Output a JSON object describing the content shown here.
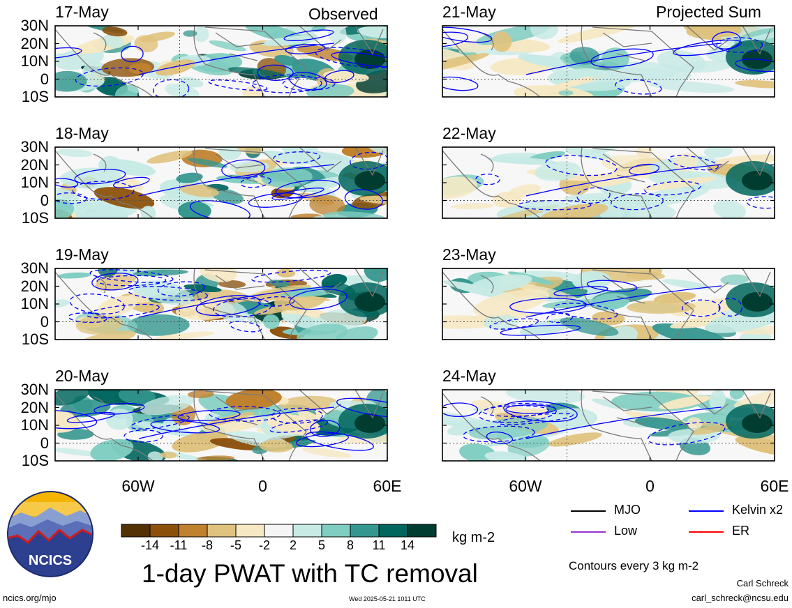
{
  "figure": {
    "title": "1-day PWAT with TC removal",
    "units": "kg m-2",
    "contour_note": "Contours every 3 kg m-2",
    "timestamp": "Wed 2025-05-21 1011 UTC",
    "url": "ncics.org/mjo",
    "author": "Carl Schreck",
    "email": "carl_schreck@ncsu.edu",
    "logo_text": "NCICS"
  },
  "columns": {
    "left_tag": "Observed",
    "right_tag": "Projected Sum"
  },
  "panels": {
    "left": [
      {
        "date": "17-May"
      },
      {
        "date": "18-May"
      },
      {
        "date": "19-May"
      },
      {
        "date": "20-May"
      }
    ],
    "right": [
      {
        "date": "21-May"
      },
      {
        "date": "22-May"
      },
      {
        "date": "23-May"
      },
      {
        "date": "24-May"
      }
    ]
  },
  "axes": {
    "lat_labels": [
      "30N",
      "20N",
      "10N",
      "0",
      "10S"
    ],
    "lon_labels": [
      "60W",
      "0",
      "60E"
    ]
  },
  "colorbar": {
    "ticks": [
      "-14",
      "-11",
      "-8",
      "-5",
      "-2",
      "2",
      "5",
      "8",
      "11",
      "14"
    ],
    "colors": [
      "#543005",
      "#8c510a",
      "#bf812d",
      "#dfc27d",
      "#f6e8c3",
      "#f5f5f5",
      "#c7eae5",
      "#80cdc1",
      "#35978f",
      "#01665e",
      "#003c30"
    ]
  },
  "legend": [
    {
      "label": "MJO",
      "color": "#000000"
    },
    {
      "label": "Kelvin x2",
      "color": "#0000ff"
    },
    {
      "label": "Low",
      "color": "#9932cc"
    },
    {
      "label": "ER",
      "color": "#ff0000"
    }
  ]
}
